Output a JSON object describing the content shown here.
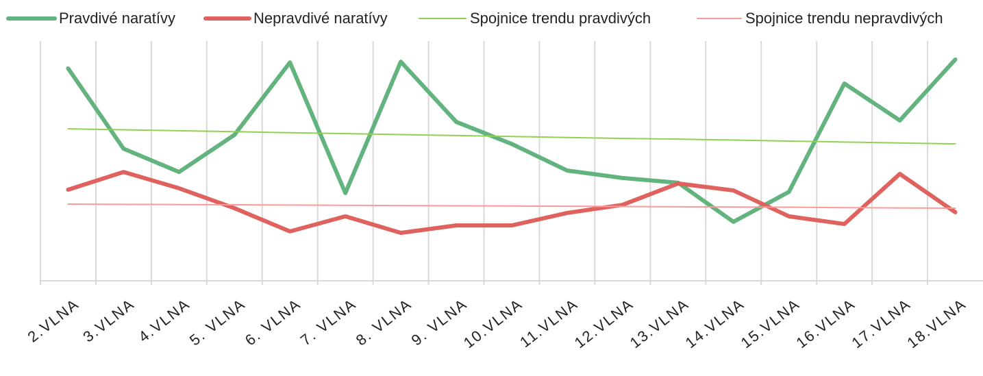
{
  "chart_data": {
    "type": "line",
    "categories": [
      "2.VLNA",
      "3.VLNA",
      "4.VLNA",
      "5. VLNA",
      "6. VLNA",
      "7. VLNA",
      "8. VLNA",
      "9. VLNA",
      "10.VLNA",
      "11.VLNA",
      "12.VLNA",
      "13.VLNA",
      "14.VLNA",
      "15.VLNA",
      "16.VLNA",
      "17.VLNA",
      "18.VLNA"
    ],
    "series": [
      {
        "name": "Pravdivé naratívy",
        "color": "#63b37f",
        "width": 6,
        "values": [
          88.6,
          55.1,
          45.4,
          60.9,
          91.1,
          36.6,
          91.4,
          66.3,
          57.1,
          46,
          42.9,
          40.9,
          24.6,
          37.1,
          82.3,
          66.9,
          92.3
        ]
      },
      {
        "name": "Nepravdivé naratívy",
        "color": "#e0625f",
        "width": 6,
        "values": [
          38,
          45.4,
          38.6,
          30.3,
          20.6,
          26.9,
          20,
          23.1,
          23.1,
          28.3,
          31.7,
          40.6,
          37.7,
          26.9,
          23.7,
          44.6,
          28.6
        ]
      },
      {
        "name": "Spojnice trendu pravdivých",
        "color": "#92d050",
        "width": 2,
        "values": [
          63.4,
          63,
          62.6,
          62.2,
          61.8,
          61.4,
          61,
          60.6,
          60.2,
          59.8,
          59.4,
          59.1,
          58.7,
          58.3,
          57.9,
          57.5,
          57.1
        ]
      },
      {
        "name": "Spojnice trendu nepravdivých",
        "color": "#ff9999",
        "width": 2,
        "values": [
          32,
          31.9,
          31.8,
          31.7,
          31.6,
          31.5,
          31.4,
          31.3,
          31.2,
          31.1,
          31,
          30.9,
          30.8,
          30.7,
          30.5,
          30.4,
          30.3
        ]
      }
    ],
    "ylim": [
      0,
      100
    ],
    "grid": true
  }
}
